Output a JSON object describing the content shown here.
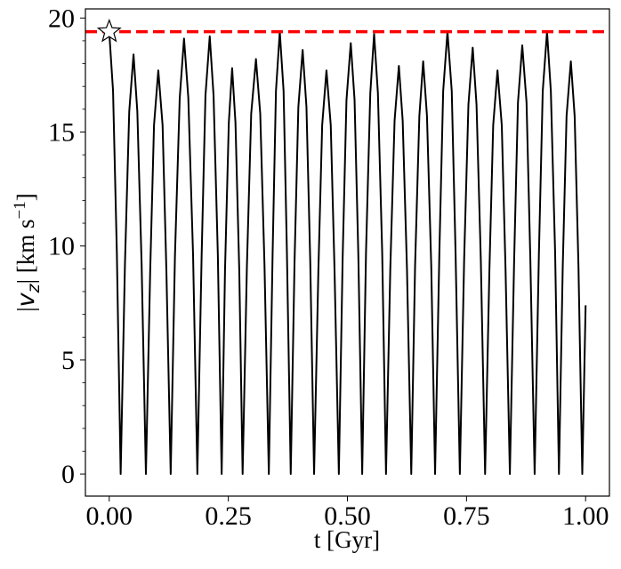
{
  "chart_data": {
    "type": "line",
    "xlabel": "t [Gyr]",
    "ylabel_parts": [
      "|",
      "v",
      "z",
      "| [km s",
      "−1",
      "]"
    ],
    "xlim": [
      -0.05,
      1.05
    ],
    "ylim": [
      -0.97,
      20.4
    ],
    "xticks": [
      {
        "value": 0,
        "label": "0.00"
      },
      {
        "value": 0.25,
        "label": "0.25"
      },
      {
        "value": 0.5,
        "label": "0.50"
      },
      {
        "value": 0.75,
        "label": "0.75"
      },
      {
        "value": 1,
        "label": "1.00"
      }
    ],
    "yticks": [
      0,
      5,
      10,
      15,
      20
    ],
    "yminorticks": [
      1,
      2,
      3,
      4,
      6,
      7,
      8,
      9,
      11,
      12,
      13,
      14,
      16,
      17,
      18,
      19
    ],
    "series": [
      {
        "color": "#000000",
        "x": [
          0,
          0.008,
          0.016,
          0.024,
          0.033,
          0.042,
          0.051,
          0.059,
          0.068,
          0.077,
          0.086,
          0.094,
          0.103,
          0.112,
          0.12,
          0.129,
          0.138,
          0.148,
          0.157,
          0.166,
          0.176,
          0.185,
          0.194,
          0.202,
          0.211,
          0.219,
          0.228,
          0.236,
          0.243,
          0.251,
          0.258,
          0.265,
          0.273,
          0.28,
          0.289,
          0.298,
          0.308,
          0.317,
          0.326,
          0.335,
          0.343,
          0.35,
          0.358,
          0.366,
          0.373,
          0.381,
          0.389,
          0.397,
          0.406,
          0.414,
          0.422,
          0.43,
          0.439,
          0.447,
          0.456,
          0.465,
          0.473,
          0.482,
          0.49,
          0.498,
          0.507,
          0.515,
          0.523,
          0.531,
          0.539,
          0.548,
          0.556,
          0.564,
          0.573,
          0.581,
          0.59,
          0.599,
          0.608,
          0.616,
          0.625,
          0.634,
          0.642,
          0.651,
          0.659,
          0.667,
          0.676,
          0.684,
          0.693,
          0.701,
          0.71,
          0.719,
          0.727,
          0.736,
          0.745,
          0.754,
          0.763,
          0.771,
          0.78,
          0.789,
          0.798,
          0.806,
          0.815,
          0.824,
          0.832,
          0.841,
          0.85,
          0.858,
          0.867,
          0.876,
          0.884,
          0.893,
          0.902,
          0.91,
          0.919,
          0.927,
          0.936,
          0.944,
          0.952,
          0.96,
          0.969,
          0.977,
          0.985,
          0.993,
          1.0
        ],
        "values": [
          19.4,
          16.8,
          9.7,
          0,
          9.2,
          15.9,
          18.4,
          15.9,
          9.2,
          0,
          8.9,
          15.3,
          17.7,
          15.3,
          8.9,
          0,
          9.6,
          16.5,
          19.1,
          16.5,
          9.6,
          0,
          9.6,
          16.6,
          19.2,
          16.6,
          9.6,
          0,
          8.9,
          15.4,
          17.8,
          15.4,
          8.9,
          0,
          9.1,
          15.8,
          18.2,
          15.8,
          9.1,
          0,
          9.7,
          16.8,
          19.4,
          16.8,
          9.7,
          0,
          9.3,
          16.1,
          18.6,
          16.1,
          9.3,
          0,
          8.9,
          15.3,
          17.7,
          15.3,
          8.9,
          0,
          9.5,
          16.4,
          18.9,
          16.4,
          9.5,
          0,
          9.7,
          16.7,
          19.3,
          16.7,
          9.7,
          0,
          9.0,
          15.5,
          17.9,
          15.5,
          9.0,
          0,
          9.1,
          15.7,
          18.1,
          15.7,
          9.1,
          0,
          9.7,
          16.8,
          19.4,
          16.8,
          9.7,
          0,
          9.4,
          16.2,
          18.7,
          16.2,
          9.4,
          0,
          8.9,
          15.3,
          17.7,
          15.3,
          8.9,
          0,
          9.4,
          16.3,
          18.8,
          16.3,
          9.4,
          0,
          9.7,
          16.8,
          19.4,
          16.8,
          9.7,
          0,
          9.1,
          15.7,
          18.1,
          15.7,
          9.1,
          0,
          7.4
        ]
      }
    ],
    "reference_line": {
      "value": 19.4,
      "color": "#ff0000",
      "style": "dashed"
    },
    "start_marker": {
      "x": 0,
      "y": 19.4,
      "shape": "star"
    }
  }
}
